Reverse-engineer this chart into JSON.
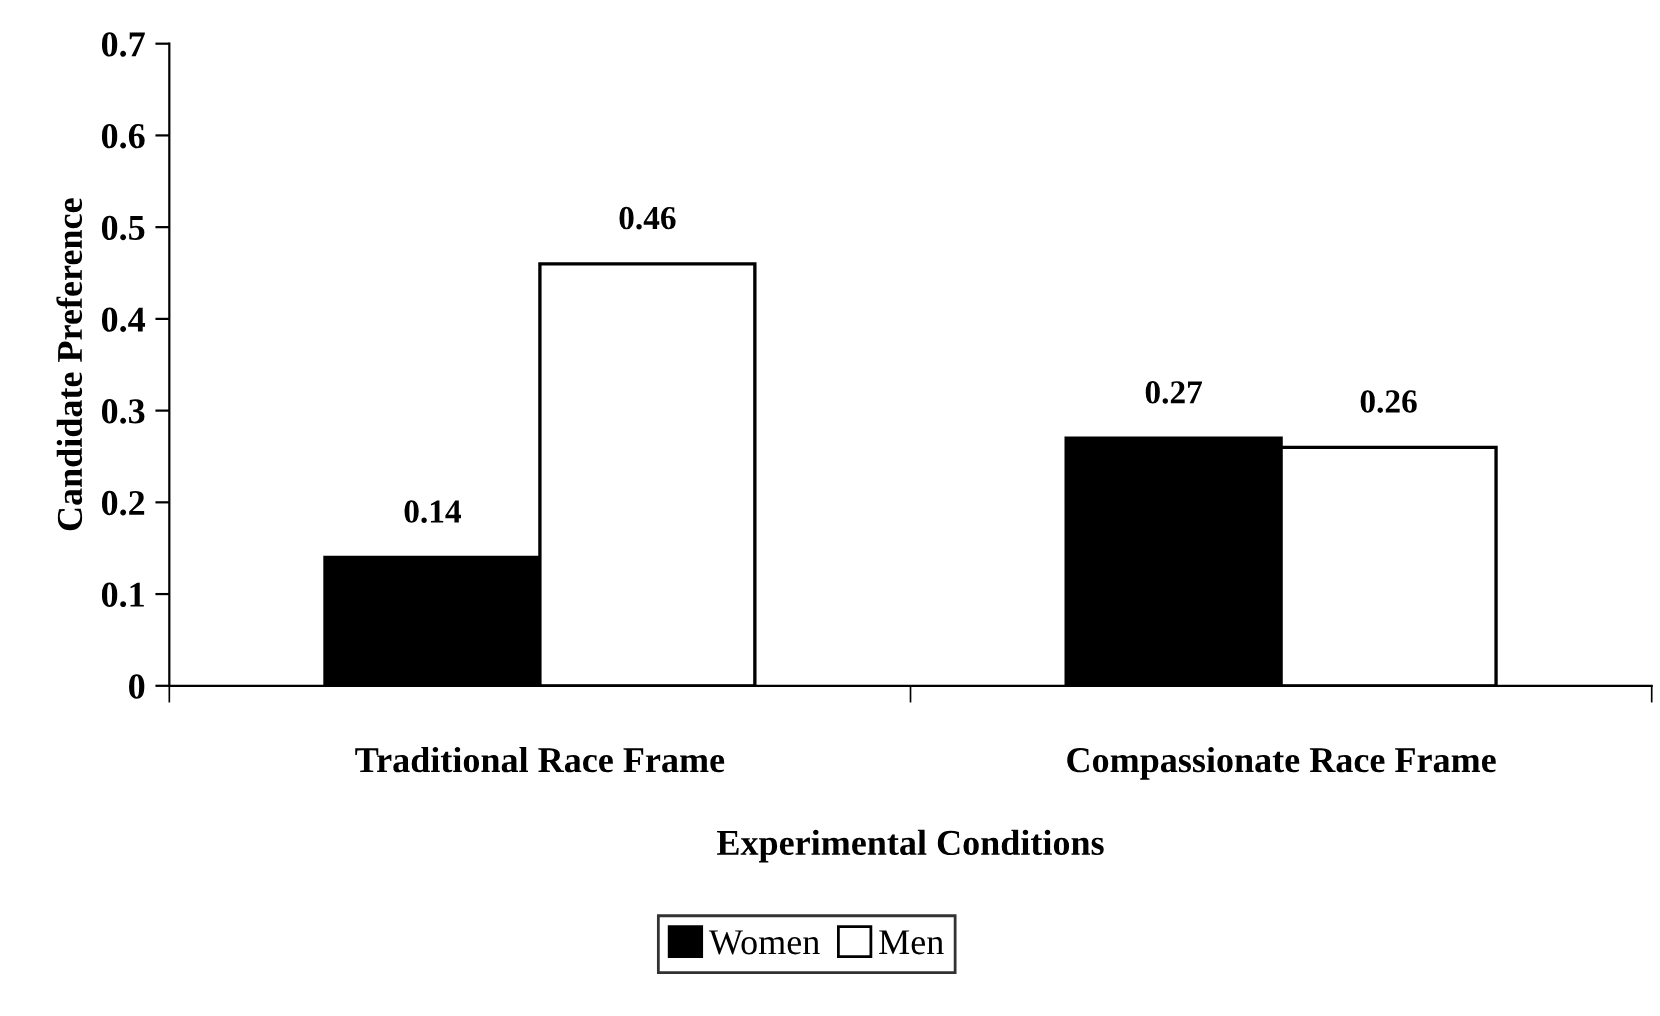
{
  "chart_data": {
    "type": "bar",
    "xlabel": "Experimental Conditions",
    "ylabel": "Candidate Preference",
    "categories": [
      "Traditional Race Frame",
      "Compassionate Race Frame"
    ],
    "series": [
      {
        "name": "Women",
        "color": "#000000",
        "values": [
          0.14,
          0.27
        ]
      },
      {
        "name": "Men",
        "color": "#ffffff",
        "values": [
          0.46,
          0.26
        ]
      }
    ],
    "ylim": [
      0,
      0.7
    ],
    "yticks": [
      0,
      0.1,
      0.2,
      0.3,
      0.4,
      0.5,
      0.6,
      0.7
    ],
    "data_labels": true,
    "legend": "bottom"
  }
}
